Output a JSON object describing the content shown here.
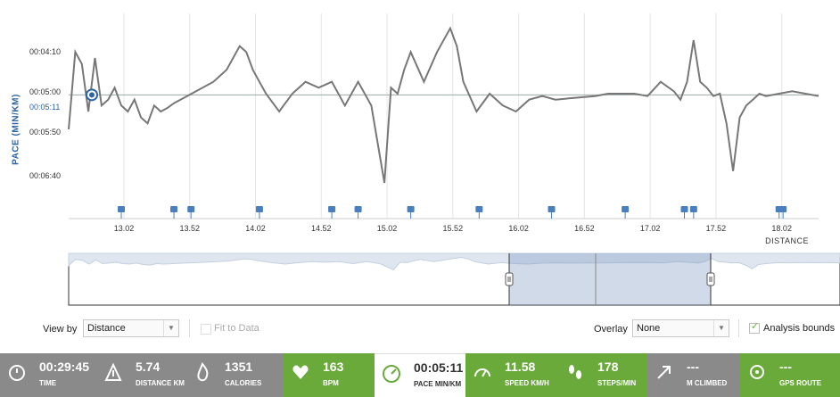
{
  "chart": {
    "y_axis_title": "PACE (MIN/KM)",
    "y_ticks": [
      "00:04:10",
      "00:05:00",
      "00:05:50",
      "00:06:40"
    ],
    "current_value": "00:05:11",
    "x_ticks": [
      "13.02",
      "13.52",
      "14.02",
      "14.52",
      "15.02",
      "15.52",
      "16.02",
      "16.52",
      "17.02",
      "17.52",
      "18.02"
    ],
    "x_axis_title": "DISTANCE"
  },
  "chart_data": {
    "type": "line",
    "ylabel": "PACE (MIN/KM)",
    "xlabel": "DISTANCE",
    "y_unit": "seconds per km",
    "ylim": [
      250,
      400
    ],
    "xlim": [
      12.6,
      18.3
    ],
    "series": [
      {
        "x": [
          12.6,
          12.65,
          12.7,
          12.75,
          12.8,
          12.85,
          12.9,
          12.95,
          13.0,
          13.05,
          13.1,
          13.15,
          13.2,
          13.25,
          13.3,
          13.35,
          13.4,
          13.45,
          13.5,
          13.6,
          13.7,
          13.8,
          13.9,
          13.95,
          14.0,
          14.05,
          14.1,
          14.2,
          14.3,
          14.4,
          14.5,
          14.6,
          14.7,
          14.8,
          14.9,
          15.0,
          15.05,
          15.1,
          15.15,
          15.2,
          15.3,
          15.4,
          15.5,
          15.55,
          15.6,
          15.7,
          15.8,
          15.9,
          16.0,
          16.1,
          16.2,
          16.3,
          16.4,
          16.5,
          16.6,
          16.7,
          16.8,
          16.9,
          17.0,
          17.1,
          17.2,
          17.25,
          17.3,
          17.35,
          17.4,
          17.45,
          17.5,
          17.55,
          17.6,
          17.65,
          17.7,
          17.75,
          17.8,
          17.85,
          17.9,
          18.0,
          18.1,
          18.2,
          18.3
        ],
        "y": [
          340,
          275,
          285,
          325,
          280,
          320,
          315,
          305,
          320,
          325,
          315,
          330,
          335,
          320,
          325,
          322,
          318,
          315,
          312,
          306,
          300,
          290,
          270,
          275,
          290,
          300,
          310,
          325,
          310,
          300,
          305,
          300,
          320,
          300,
          320,
          385,
          305,
          310,
          290,
          275,
          300,
          275,
          255,
          270,
          300,
          325,
          310,
          320,
          325,
          315,
          312,
          315,
          314,
          313,
          312,
          310,
          310,
          310,
          312,
          300,
          308,
          315,
          300,
          265,
          300,
          305,
          312,
          310,
          335,
          375,
          330,
          320,
          315,
          310,
          312,
          310,
          308,
          310,
          312
        ]
      }
    ]
  },
  "markers_x": [
    13.0,
    13.4,
    13.53,
    14.05,
    14.6,
    14.8,
    15.2,
    15.72,
    16.27,
    16.83,
    17.28,
    17.35,
    18.0,
    18.03
  ],
  "navigator": {
    "selection_start": 16.0,
    "selection_end": 17.6
  },
  "controls": {
    "view_by_label": "View by",
    "view_by_value": "Distance",
    "fit_to_data_label": "Fit to Data",
    "overlay_label": "Overlay",
    "overlay_value": "None",
    "analysis_bounds_label": "Analysis bounds"
  },
  "stats": [
    {
      "value": "00:29:45",
      "label": "TIME",
      "icon": "stopwatch-icon",
      "style": "gray"
    },
    {
      "value": "5.74",
      "label": "DISTANCE KM",
      "icon": "distance-icon",
      "style": "gray"
    },
    {
      "value": "1351",
      "label": "CALORIES",
      "icon": "flame-icon",
      "style": "gray"
    },
    {
      "value": "163",
      "label": "BPM",
      "icon": "heart-icon",
      "style": "green"
    },
    {
      "value": "00:05:11",
      "label": "PACE MIN/KM",
      "icon": "pace-gauge-icon",
      "style": "white"
    },
    {
      "value": "11.58",
      "label": "SPEED KM/H",
      "icon": "speed-gauge-icon",
      "style": "green"
    },
    {
      "value": "178",
      "label": "STEPS/MIN",
      "icon": "footsteps-icon",
      "style": "green"
    },
    {
      "value": "---",
      "label": "M CLIMBED",
      "icon": "climb-arrow-icon",
      "style": "gray"
    },
    {
      "value": "---",
      "label": "GPS ROUTE",
      "icon": "gps-icon",
      "style": "green"
    }
  ],
  "colors": {
    "line": "#777777",
    "accent": "#2c64a5",
    "marker": "#4a7fbf",
    "green": "#6aaa3a",
    "gray": "#8a8a8a"
  }
}
